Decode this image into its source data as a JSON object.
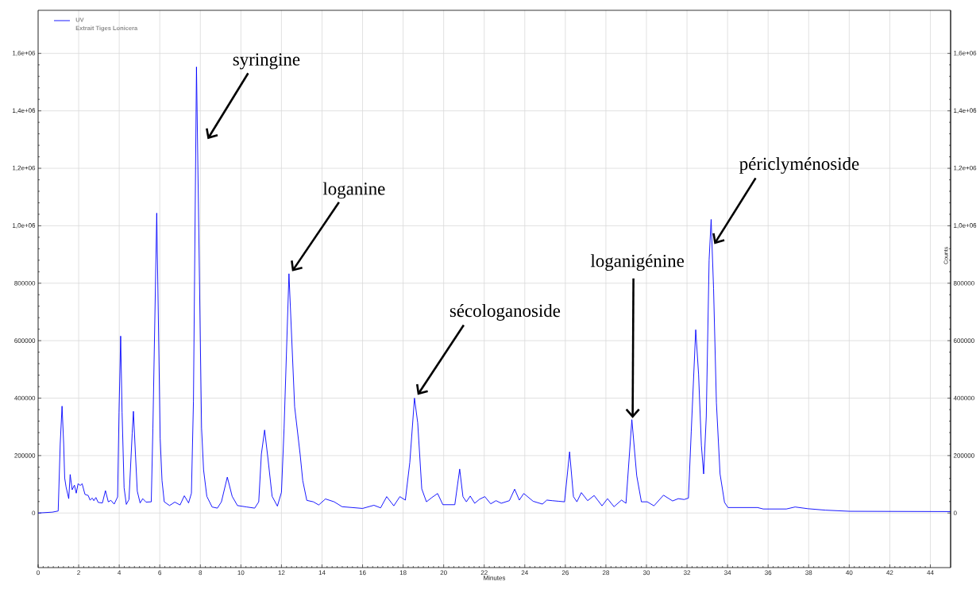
{
  "chart_data": {
    "type": "line",
    "xlabel": "Minutes",
    "y2label": "Counts",
    "legend_title": "UV",
    "legend": "top left",
    "grid": true,
    "xlim": [
      0,
      45
    ],
    "ylim": [
      -190000,
      1750000
    ],
    "y2lim": [
      -190000,
      1750000
    ],
    "xticks": [
      0,
      2,
      4,
      6,
      8,
      10,
      12,
      14,
      16,
      18,
      20,
      22,
      24,
      26,
      28,
      30,
      32,
      34,
      36,
      38,
      40,
      42,
      44
    ],
    "yticks": [
      0,
      200000,
      400000,
      600000,
      800000,
      {
        "value": 1000000,
        "label": "1,0e+06"
      },
      {
        "value": 1200000,
        "label": "1,2e+06"
      },
      {
        "value": 1400000,
        "label": "1,4e+06"
      },
      {
        "value": 1600000,
        "label": "1,6e+06"
      }
    ],
    "y2ticks": [
      0,
      200000,
      400000,
      600000,
      800000,
      {
        "value": 1000000,
        "label": "1,0e+06"
      },
      {
        "value": 1200000,
        "label": "1,2e+06"
      },
      {
        "value": 1400000,
        "label": "1,4e+06"
      },
      {
        "value": 1600000,
        "label": "1,6e+06"
      }
    ],
    "annotations": [
      {
        "text": "syringine",
        "x": 7.81,
        "y": 1553000
      },
      {
        "text": "loganine",
        "x": 12.37,
        "y": 833000
      },
      {
        "text": "sécologanoside",
        "x": 18.56,
        "y": 400000
      },
      {
        "text": "loganigénine",
        "x": 29.28,
        "y": 325000
      },
      {
        "text": "périclyménoside",
        "x": 33.19,
        "y": 1022000
      }
    ],
    "series": [
      {
        "name": "Extrait Tiges Lonicera",
        "color": "#0000ff",
        "x": [
          0,
          0.7,
          0.99,
          1.09,
          1.18,
          1.26,
          1.31,
          1.38,
          1.51,
          1.58,
          1.68,
          1.79,
          1.88,
          1.97,
          2.08,
          2.17,
          2.31,
          2.47,
          2.56,
          2.67,
          2.75,
          2.85,
          2.96,
          3.17,
          3.32,
          3.46,
          3.59,
          3.75,
          3.92,
          3.99,
          4.07,
          4.14,
          4.24,
          4.35,
          4.48,
          4.64,
          4.7,
          4.8,
          4.89,
          5.03,
          5.16,
          5.32,
          5.58,
          5.66,
          5.85,
          6.02,
          6.11,
          6.22,
          6.48,
          6.74,
          7.0,
          7.21,
          7.42,
          7.56,
          7.66,
          7.81,
          8.06,
          8.16,
          8.32,
          8.58,
          8.84,
          9.04,
          9.33,
          9.57,
          9.83,
          10.29,
          10.68,
          10.88,
          11.01,
          11.17,
          11.34,
          11.54,
          11.8,
          12.0,
          12.13,
          12.37,
          12.65,
          12.92,
          13.05,
          13.25,
          13.57,
          13.84,
          14.17,
          14.6,
          14.99,
          16.0,
          16.56,
          16.89,
          17.19,
          17.54,
          17.84,
          18.11,
          18.33,
          18.56,
          18.72,
          18.92,
          19.15,
          19.42,
          19.7,
          19.96,
          20.55,
          20.79,
          20.95,
          21.12,
          21.31,
          21.53,
          21.77,
          22.03,
          22.32,
          22.58,
          22.84,
          23.24,
          23.5,
          23.73,
          23.95,
          24.41,
          24.87,
          25.09,
          25.35,
          25.66,
          25.96,
          26.21,
          26.4,
          26.57,
          26.79,
          27.1,
          27.42,
          27.81,
          28.08,
          28.4,
          28.77,
          28.99,
          29.28,
          29.52,
          29.75,
          30.04,
          30.37,
          30.84,
          31.29,
          31.57,
          31.86,
          32.07,
          32.21,
          32.43,
          32.57,
          32.71,
          32.82,
          32.95,
          33.09,
          33.19,
          33.31,
          33.45,
          33.63,
          33.85,
          34.02,
          34.98,
          35.48,
          35.76,
          36.9,
          37.33,
          37.96,
          38.82,
          40.02,
          45
        ],
        "values": [
          0,
          3000,
          7000,
          241000,
          372000,
          241000,
          122000,
          90000,
          50000,
          134000,
          81000,
          97000,
          69000,
          102000,
          96000,
          102000,
          65000,
          61000,
          45000,
          52000,
          43000,
          54000,
          37000,
          35000,
          78000,
          39000,
          44000,
          31000,
          56000,
          351000,
          616000,
          351000,
          88000,
          30000,
          47000,
          278000,
          354000,
          205000,
          76000,
          35000,
          50000,
          38000,
          39000,
          296000,
          1044000,
          260000,
          113000,
          39000,
          26000,
          38000,
          28000,
          60000,
          35000,
          69000,
          388000,
          1553000,
          296000,
          150000,
          58000,
          21000,
          17000,
          39000,
          125000,
          58000,
          26000,
          21000,
          17000,
          39000,
          205000,
          289000,
          186000,
          58000,
          24000,
          72000,
          296000,
          833000,
          370000,
          205000,
          113000,
          44000,
          39000,
          28000,
          49000,
          39000,
          22000,
          16000,
          27000,
          18000,
          57000,
          25000,
          57000,
          45000,
          176000,
          400000,
          314000,
          84000,
          39000,
          54000,
          68000,
          29000,
          29000,
          153000,
          57000,
          39000,
          59000,
          34000,
          48000,
          57000,
          32000,
          43000,
          34000,
          43000,
          83000,
          45000,
          68000,
          41000,
          31000,
          45000,
          43000,
          41000,
          39000,
          213000,
          57000,
          39000,
          71000,
          43000,
          61000,
          25000,
          50000,
          22000,
          45000,
          34000,
          325000,
          130000,
          39000,
          39000,
          25000,
          62000,
          42000,
          50000,
          47000,
          52000,
          285000,
          638000,
          484000,
          235000,
          136000,
          335000,
          881000,
          1022000,
          782000,
          384000,
          136000,
          37000,
          19000,
          19000,
          19000,
          14000,
          14000,
          21000,
          15000,
          10000,
          6000,
          5000
        ]
      }
    ]
  }
}
